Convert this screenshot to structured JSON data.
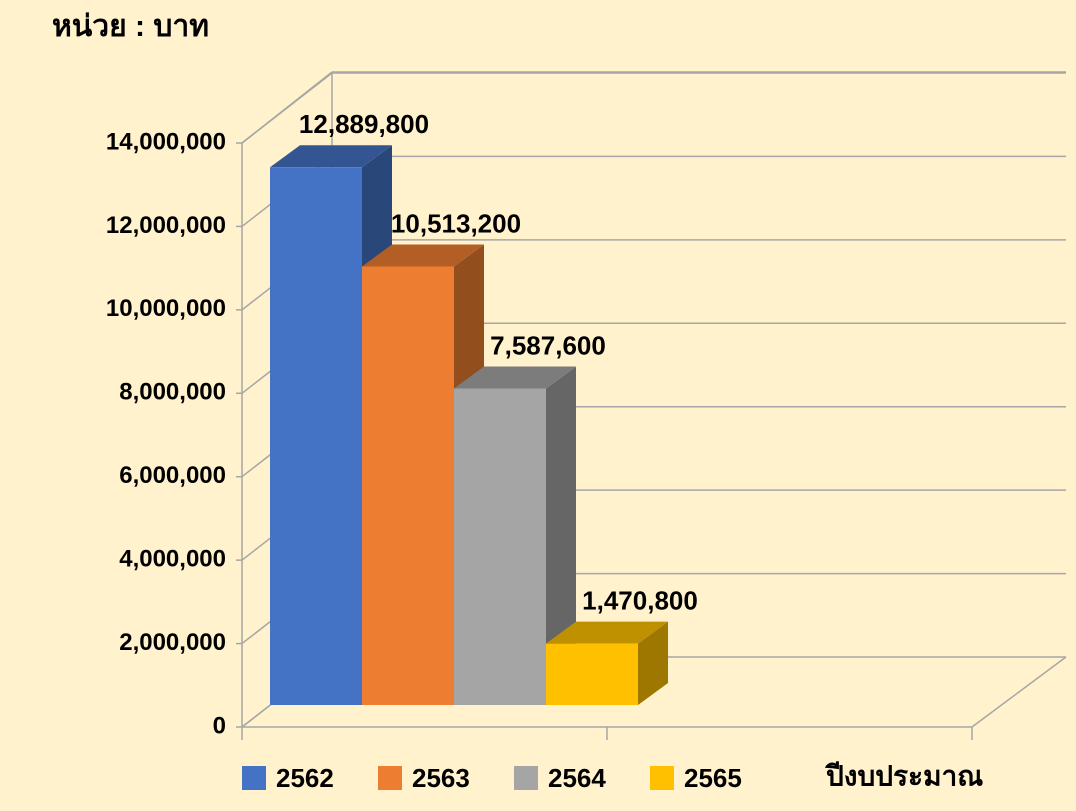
{
  "chart_data": {
    "type": "bar3d",
    "title": "หน่วย : บาท",
    "x_label": "ปีงบประมาณ",
    "categories": [
      null
    ],
    "series": [
      {
        "name": "2562",
        "color": "#4472c4",
        "values": [
          12889800
        ],
        "value_labels": [
          "12,889,800"
        ]
      },
      {
        "name": "2563",
        "color": "#ed7d31",
        "values": [
          10513200
        ],
        "value_labels": [
          "10,513,200"
        ]
      },
      {
        "name": "2564",
        "color": "#a5a5a5",
        "values": [
          7587600
        ],
        "value_labels": [
          "7,587,600"
        ]
      },
      {
        "name": "2565",
        "color": "#ffc000",
        "values": [
          1470800
        ],
        "value_labels": [
          "1,470,800"
        ]
      }
    ],
    "ylim": [
      0,
      14000000
    ],
    "yticks": [
      0,
      {
        "value": 2000000,
        "label": "2,000,000"
      },
      {
        "value": 4000000,
        "label": "4,000,000"
      },
      {
        "value": 6000000,
        "label": "6,000,000"
      },
      {
        "value": 8000000,
        "label": "8,000,000"
      },
      {
        "value": 10000000,
        "label": "10,000,000"
      },
      {
        "value": 12000000,
        "label": "12,000,000"
      },
      {
        "value": 14000000,
        "label": "14,000,000"
      }
    ],
    "grid": true,
    "legend": "bottom"
  }
}
